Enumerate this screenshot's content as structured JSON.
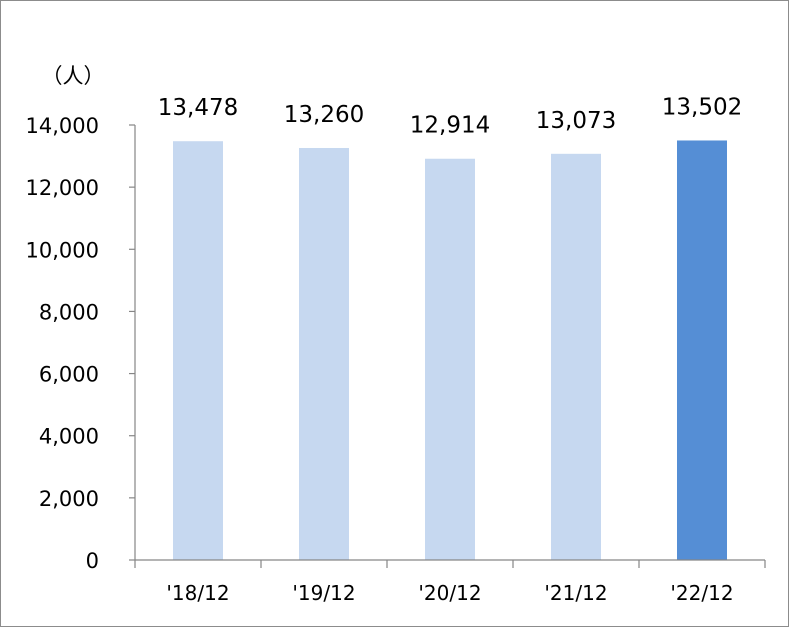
{
  "chart_data": {
    "type": "bar",
    "unit_label": "（人）",
    "categories": [
      "'18/12",
      "'19/12",
      "'20/12",
      "'21/12",
      "'22/12"
    ],
    "values": [
      13478,
      13260,
      12914,
      13073,
      13502
    ],
    "value_labels": [
      "13,478",
      "13,260",
      "12,914",
      "13,073",
      "13,502"
    ],
    "yticks": [
      "0",
      "2,000",
      "4,000",
      "6,000",
      "8,000",
      "10,000",
      "12,000",
      "14,000"
    ],
    "ylim": [
      0,
      14000
    ],
    "grid": false,
    "legend": "none",
    "highlight_index": 4
  },
  "colors": {
    "bar": "#c6d8f0",
    "bar_highlight": "#558ed5",
    "axis": "#868686"
  }
}
